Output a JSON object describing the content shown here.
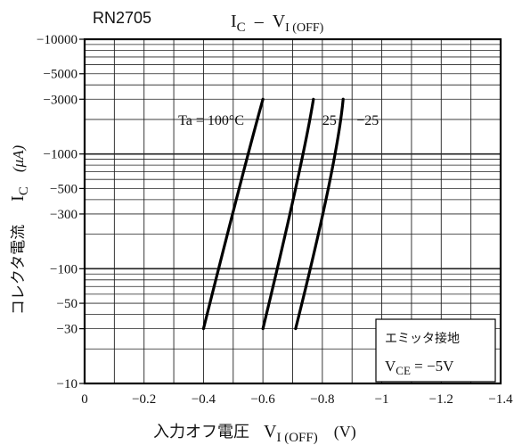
{
  "chart_data": {
    "type": "line",
    "part_number": "RN2705",
    "title": {
      "main": "I",
      "main_sub": "C",
      "dash": "–",
      "second": "V",
      "second_sub": "I (OFF)"
    },
    "ylabel": {
      "jp": "コレクタ電流",
      "sym": "I",
      "sym_sub": "C",
      "unit": "(μA)"
    },
    "xlabel": {
      "jp": "入力オフ電圧",
      "sym": "V",
      "sym_sub": "I (OFF)",
      "unit": "(V)"
    },
    "x_scale": "linear-negative",
    "y_scale": "log",
    "xlim": [
      0,
      -1.4
    ],
    "ylim": [
      -10,
      -10000
    ],
    "x_ticks": [
      0,
      -0.2,
      -0.4,
      -0.6,
      -0.8,
      -1,
      -1.2,
      -1.4
    ],
    "x_tick_labels": [
      "0",
      "−0.2",
      "−0.4",
      "−0.6",
      "−0.8",
      "−1",
      "−1.2",
      "−1.4"
    ],
    "y_ticks": [
      -10,
      -30,
      -50,
      -100,
      -300,
      -500,
      -1000,
      -3000,
      -5000,
      -10000
    ],
    "y_tick_labels": [
      "−10",
      "−30",
      "−50",
      "−100",
      "−300",
      "−500",
      "−1000",
      "−3000",
      "−5000",
      "−10000"
    ],
    "grid": true,
    "series": [
      {
        "name": "Ta = 100°C",
        "x": [
          -0.4,
          -0.52,
          -0.6
        ],
        "y": [
          -30,
          -500,
          -3000
        ]
      },
      {
        "name": "25",
        "x": [
          -0.6,
          -0.71,
          -0.77
        ],
        "y": [
          -30,
          -500,
          -3000
        ]
      },
      {
        "name": "−25",
        "x": [
          -0.71,
          -0.82,
          -0.87
        ],
        "y": [
          -30,
          -500,
          -3000
        ]
      }
    ],
    "conditions": {
      "line1": "エミッタ接地",
      "line2_sym": "V",
      "line2_sub": "CE",
      "line2_val": " = −5V"
    }
  }
}
